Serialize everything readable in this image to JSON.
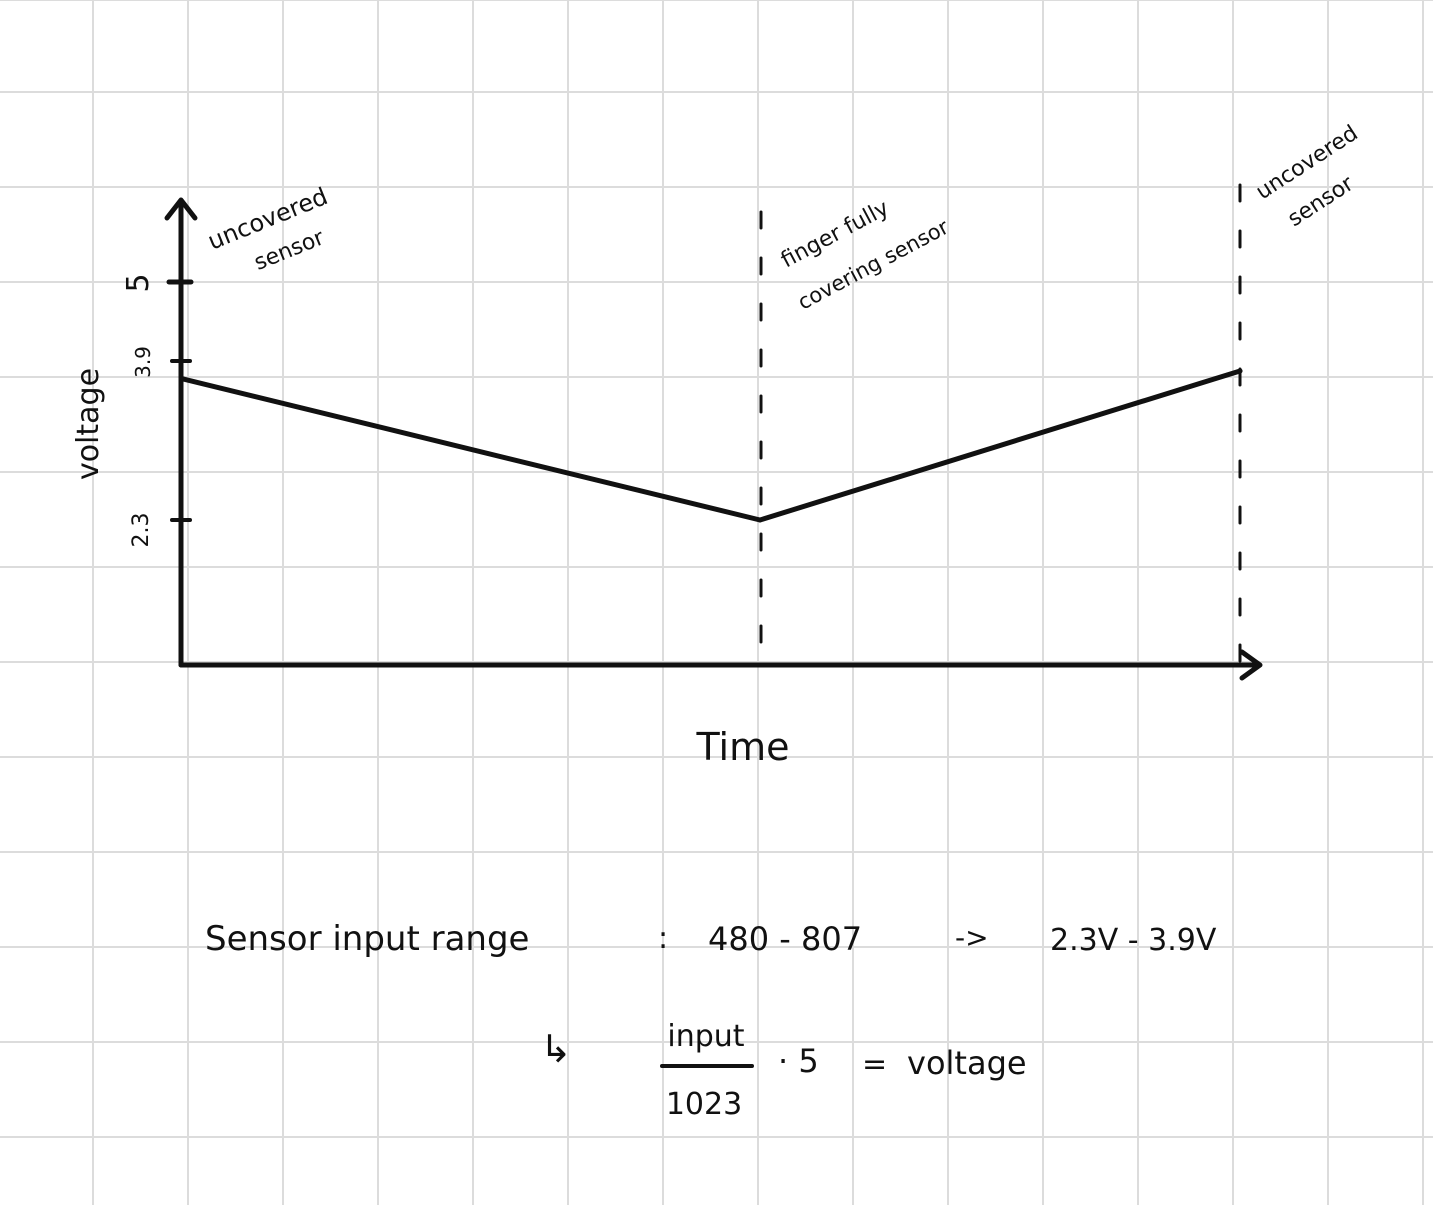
{
  "axes": {
    "y_label": "voltage",
    "x_label": "Time",
    "y_ticks": [
      "5",
      "3.9",
      "2.3"
    ]
  },
  "annotations": {
    "start": {
      "line1": "uncovered",
      "line2": "sensor"
    },
    "middle": {
      "line1": "finger fully",
      "line2": "covering sensor"
    },
    "end": {
      "line1": "uncovered",
      "line2": "sensor"
    }
  },
  "chart_data": {
    "type": "line",
    "xlabel": "Time",
    "ylabel": "voltage",
    "y_ticks": [
      5,
      3.9,
      2.3
    ],
    "series": [
      {
        "points": [
          {
            "phase": "uncovered sensor",
            "y": 3.9
          },
          {
            "phase": "finger fully covering sensor",
            "y": 2.3
          },
          {
            "phase": "uncovered sensor",
            "y": 3.9
          }
        ]
      }
    ]
  },
  "notes": {
    "range_label": "Sensor input range",
    "colon": ":",
    "input_range": "480 - 807",
    "arrow": "->",
    "voltage_range": "2.3V - 3.9V",
    "formula_arrow": "↳",
    "numerator": "input",
    "denominator": "1023",
    "multiplier": "· 5",
    "equals": "=",
    "result": "voltage"
  },
  "colors": {
    "ink": "#111111",
    "grid": "#dcdcdc",
    "paper": "#ffffff"
  }
}
